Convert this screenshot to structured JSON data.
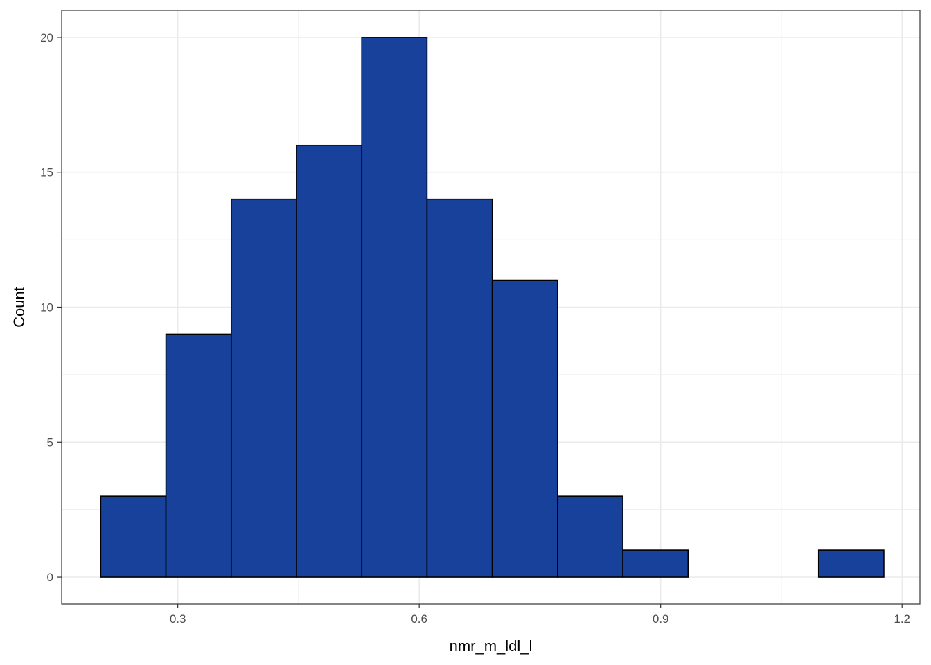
{
  "chart_data": {
    "type": "bar",
    "subtype": "histogram",
    "title": "",
    "xlabel": "nmr_m_ldl_l",
    "ylabel": "Count",
    "xlim": [
      0.1557,
      1.2222
    ],
    "ylim": [
      -1,
      21
    ],
    "x_ticks": [
      0.3,
      0.6,
      0.9,
      1.2
    ],
    "x_tick_labels": [
      "0.3",
      "0.6",
      "0.9",
      "1.2"
    ],
    "y_ticks": [
      0,
      5,
      10,
      15,
      20
    ],
    "y_tick_labels": [
      "0",
      "5",
      "10",
      "15",
      "20"
    ],
    "bin_width": 0.0811,
    "bins": [
      {
        "x0": 0.2042,
        "x1": 0.2853,
        "count": 3
      },
      {
        "x0": 0.2853,
        "x1": 0.3664,
        "count": 9
      },
      {
        "x0": 0.3664,
        "x1": 0.4475,
        "count": 14
      },
      {
        "x0": 0.4475,
        "x1": 0.5286,
        "count": 16
      },
      {
        "x0": 0.5286,
        "x1": 0.6097,
        "count": 20
      },
      {
        "x0": 0.6097,
        "x1": 0.6908,
        "count": 14
      },
      {
        "x0": 0.6908,
        "x1": 0.7719,
        "count": 11
      },
      {
        "x0": 0.7719,
        "x1": 0.853,
        "count": 3
      },
      {
        "x0": 0.853,
        "x1": 0.9341,
        "count": 1
      },
      {
        "x0": 0.9341,
        "x1": 1.0152,
        "count": 0
      },
      {
        "x0": 1.0152,
        "x1": 1.0963,
        "count": 0
      },
      {
        "x0": 1.0963,
        "x1": 1.1774,
        "count": 1
      }
    ],
    "colors": {
      "fill": "#17419A",
      "stroke": "#000000",
      "grid": "#EBEBEB",
      "panel_border": "#333333"
    },
    "grid": true,
    "legend": "none"
  }
}
